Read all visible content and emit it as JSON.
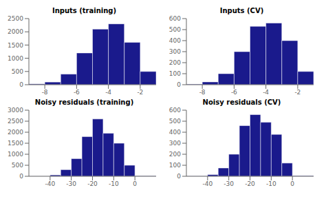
{
  "chart_data": [
    {
      "type": "histogram",
      "title": "Inputs (training)",
      "xlim": [
        -9,
        -1
      ],
      "ylim": [
        0,
        2500
      ],
      "xticks": [
        -8,
        -6,
        -4,
        -2
      ],
      "yticks": [
        0,
        500,
        1000,
        1500,
        2000,
        2500
      ],
      "bins": [
        -9,
        -8,
        -7,
        -6,
        -5,
        -4,
        -3,
        -2,
        -1
      ],
      "values": [
        30,
        100,
        400,
        1200,
        2100,
        2300,
        1600,
        500
      ],
      "color": "#1a1a8c",
      "grid": false
    },
    {
      "type": "histogram",
      "title": "Inputs (CV)",
      "xlim": [
        -9,
        -1
      ],
      "ylim": [
        0,
        600
      ],
      "xticks": [
        -8,
        -6,
        -4,
        -2
      ],
      "yticks": [
        0,
        100,
        200,
        300,
        400,
        500,
        600
      ],
      "bins": [
        -9,
        -8,
        -7,
        -6,
        -5,
        -4,
        -3,
        -2,
        -1
      ],
      "values": [
        5,
        25,
        100,
        300,
        530,
        560,
        400,
        120
      ],
      "color": "#1a1a8c",
      "grid": false
    },
    {
      "type": "histogram",
      "title": "Noisy residuals (training)",
      "xlim": [
        -50,
        10
      ],
      "ylim": [
        0,
        3000
      ],
      "xticks": [
        -40,
        -30,
        -20,
        -10,
        0
      ],
      "yticks": [
        0,
        500,
        1000,
        1500,
        2000,
        2500,
        3000
      ],
      "bins": [
        -50,
        -40,
        -35,
        -30,
        -25,
        -20,
        -15,
        -10,
        -5,
        0,
        10
      ],
      "values": [
        5,
        60,
        300,
        800,
        1800,
        2600,
        1950,
        1500,
        500,
        20
      ],
      "color": "#1a1a8c",
      "grid": false
    },
    {
      "type": "histogram",
      "title": "Noisy residuals (CV)",
      "xlim": [
        -50,
        10
      ],
      "ylim": [
        0,
        600
      ],
      "xticks": [
        -40,
        -30,
        -20,
        -10,
        0
      ],
      "yticks": [
        0,
        100,
        200,
        300,
        400,
        500,
        600
      ],
      "bins": [
        -50,
        -40,
        -35,
        -30,
        -25,
        -20,
        -15,
        -10,
        -5,
        0,
        10
      ],
      "values": [
        2,
        15,
        75,
        200,
        460,
        560,
        490,
        380,
        120,
        5
      ],
      "color": "#1a1a8c",
      "grid": false
    }
  ]
}
